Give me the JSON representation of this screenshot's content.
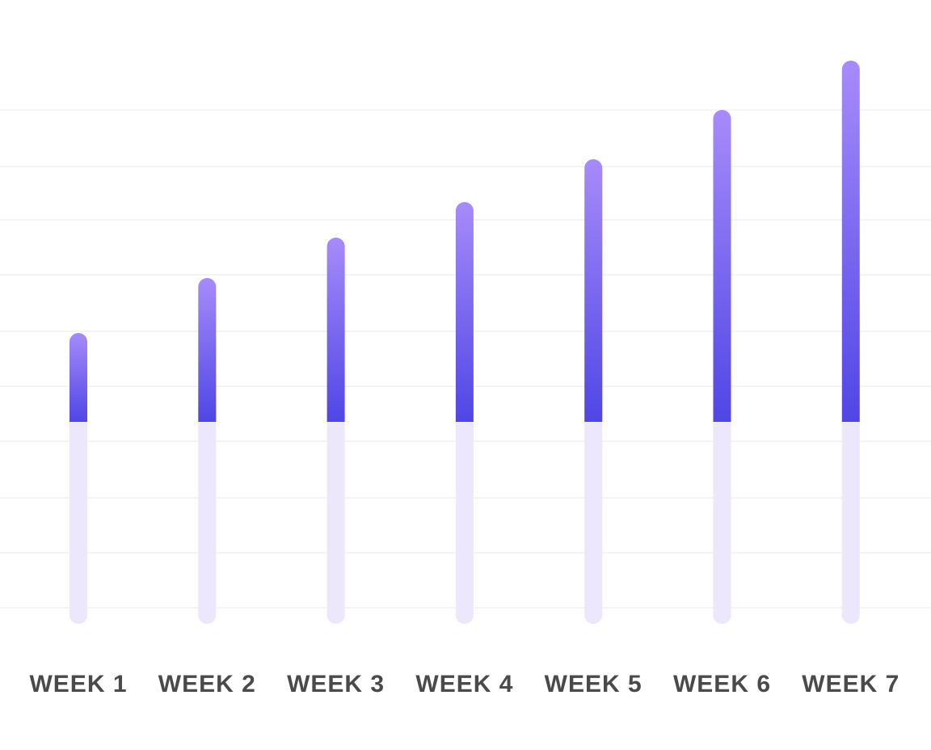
{
  "chart_data": {
    "type": "bar",
    "categories": [
      "WEEK 1",
      "WEEK 2",
      "WEEK 3",
      "WEEK 4",
      "WEEK 5",
      "WEEK 6",
      "WEEK 7"
    ],
    "series": [
      {
        "values": [
          110,
          178,
          228,
          272,
          325,
          386,
          447
        ]
      }
    ],
    "baseline_track_depth": 250,
    "ylim": [
      -250,
      447
    ],
    "title": "",
    "xlabel": "",
    "ylabel": "",
    "grid": true,
    "legend": "none",
    "colors": {
      "bar_top": "#a78bfa",
      "bar_bottom": "#4f46e5",
      "track": "#ede7fb",
      "grid": "#f4f4f6",
      "label": "#4a4a4a"
    }
  }
}
